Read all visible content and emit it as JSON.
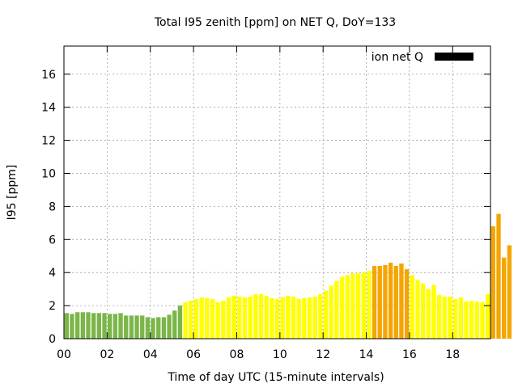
{
  "chart_data": {
    "type": "bar",
    "title": "Total I95 zenith [ppm] on NET Q, DoY=133",
    "xlabel": "Time of day UTC (15-minute intervals)",
    "ylabel": "I95 [ppm]",
    "xlim": [
      0,
      19.75
    ],
    "ylim": [
      0,
      17.7
    ],
    "yticks": [
      0,
      2,
      4,
      6,
      8,
      10,
      12,
      14,
      16
    ],
    "xticks": [
      0,
      2,
      4,
      6,
      8,
      10,
      12,
      14,
      16,
      18
    ],
    "xtick_labels": [
      "00",
      "02",
      "04",
      "06",
      "08",
      "10",
      "12",
      "14",
      "16",
      "18"
    ],
    "grid": true,
    "legend": {
      "label": "ion net Q",
      "color": "#000000",
      "placement": "top-right"
    },
    "bin_width_hours": 0.25,
    "colors": {
      "green": "#7ab648",
      "yellow": "#ffff00",
      "orange": "#f5a500"
    },
    "values": [
      1.55,
      1.5,
      1.6,
      1.6,
      1.6,
      1.55,
      1.55,
      1.55,
      1.5,
      1.5,
      1.55,
      1.4,
      1.4,
      1.4,
      1.4,
      1.3,
      1.25,
      1.3,
      1.3,
      1.45,
      1.7,
      2.0,
      2.2,
      2.3,
      2.4,
      2.5,
      2.45,
      2.4,
      2.2,
      2.3,
      2.5,
      2.6,
      2.55,
      2.5,
      2.55,
      2.7,
      2.7,
      2.6,
      2.45,
      2.4,
      2.5,
      2.6,
      2.55,
      2.4,
      2.45,
      2.5,
      2.55,
      2.7,
      2.9,
      3.2,
      3.5,
      3.75,
      3.85,
      3.95,
      3.95,
      4.0,
      4.1,
      4.4,
      4.4,
      4.45,
      4.6,
      4.4,
      4.55,
      4.2,
      3.85,
      3.55,
      3.35,
      3.0,
      3.25,
      2.65,
      2.55,
      2.55,
      2.4,
      2.5,
      2.25,
      2.3,
      2.25,
      2.2,
      2.7,
      6.8,
      7.55,
      4.9,
      5.65
    ],
    "bar_colors": [
      "green",
      "green",
      "green",
      "green",
      "green",
      "green",
      "green",
      "green",
      "green",
      "green",
      "green",
      "green",
      "green",
      "green",
      "green",
      "green",
      "green",
      "green",
      "green",
      "green",
      "green",
      "green",
      "yellow",
      "yellow",
      "yellow",
      "yellow",
      "yellow",
      "yellow",
      "yellow",
      "yellow",
      "yellow",
      "yellow",
      "yellow",
      "yellow",
      "yellow",
      "yellow",
      "yellow",
      "yellow",
      "yellow",
      "yellow",
      "yellow",
      "yellow",
      "yellow",
      "yellow",
      "yellow",
      "yellow",
      "yellow",
      "yellow",
      "yellow",
      "yellow",
      "yellow",
      "yellow",
      "yellow",
      "yellow",
      "yellow",
      "yellow",
      "yellow",
      "orange",
      "orange",
      "orange",
      "orange",
      "orange",
      "orange",
      "orange",
      "yellow",
      "yellow",
      "yellow",
      "yellow",
      "yellow",
      "yellow",
      "yellow",
      "yellow",
      "yellow",
      "yellow",
      "yellow",
      "yellow",
      "yellow",
      "yellow",
      "yellow",
      "orange",
      "orange",
      "orange",
      "orange"
    ]
  }
}
